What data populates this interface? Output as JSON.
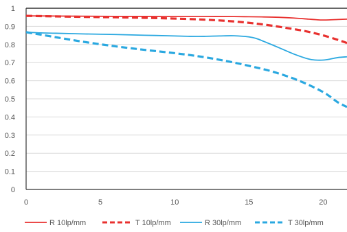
{
  "chart_data": {
    "type": "line",
    "title": "",
    "xlabel": "",
    "ylabel": "",
    "xlim": [
      0,
      21.6
    ],
    "ylim": [
      0,
      1
    ],
    "x_ticks": [
      "0",
      "5",
      "10",
      "15",
      "20"
    ],
    "y_ticks": [
      "0",
      "0.1",
      "0.2",
      "0.3",
      "0.4",
      "0.5",
      "0.6",
      "0.7",
      "0.8",
      "0.9",
      "1"
    ],
    "grid": "horizontal",
    "legend_position": "bottom",
    "series": [
      {
        "name": "R 10lp/mm",
        "color": "#e8312f",
        "style": "solid",
        "x": [
          0,
          2,
          4,
          6,
          8,
          10,
          12,
          14,
          15,
          16,
          17,
          18,
          19,
          19.5,
          20,
          21,
          21.6
        ],
        "y": [
          0.958,
          0.957,
          0.956,
          0.955,
          0.955,
          0.955,
          0.955,
          0.954,
          0.953,
          0.952,
          0.95,
          0.946,
          0.94,
          0.937,
          0.935,
          0.938,
          0.94
        ]
      },
      {
        "name": "T 10lp/mm",
        "color": "#e8312f",
        "style": "dashed",
        "x": [
          0,
          2,
          4,
          6,
          8,
          10,
          12,
          14,
          16,
          18,
          19,
          20,
          21,
          21.6
        ],
        "y": [
          0.958,
          0.955,
          0.952,
          0.95,
          0.947,
          0.943,
          0.937,
          0.927,
          0.91,
          0.885,
          0.87,
          0.85,
          0.825,
          0.808
        ]
      },
      {
        "name": "R 30lp/mm",
        "color": "#2aa8e0",
        "style": "solid",
        "x": [
          0,
          1,
          2,
          4,
          6,
          8,
          10,
          11,
          12,
          13,
          14,
          15,
          15.5,
          16,
          17,
          18,
          19,
          19.5,
          20,
          20.5,
          21,
          21.6
        ],
        "y": [
          0.868,
          0.864,
          0.862,
          0.858,
          0.855,
          0.851,
          0.847,
          0.845,
          0.845,
          0.847,
          0.848,
          0.842,
          0.833,
          0.817,
          0.783,
          0.748,
          0.72,
          0.714,
          0.714,
          0.72,
          0.728,
          0.732
        ]
      },
      {
        "name": "T 30lp/mm",
        "color": "#2aa8e0",
        "style": "dashed",
        "x": [
          0,
          2,
          4,
          6,
          8,
          10,
          12,
          14,
          16,
          17,
          18,
          19,
          20,
          20.5,
          21,
          21.6
        ],
        "y": [
          0.868,
          0.84,
          0.813,
          0.79,
          0.77,
          0.752,
          0.73,
          0.7,
          0.663,
          0.64,
          0.612,
          0.578,
          0.537,
          0.51,
          0.48,
          0.455
        ]
      }
    ]
  }
}
